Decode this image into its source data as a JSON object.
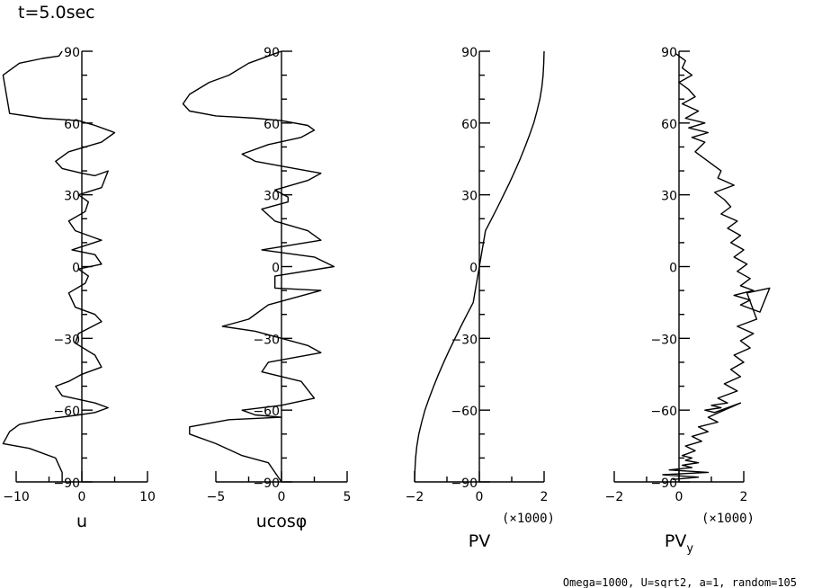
{
  "title": "t=5.0sec",
  "footer": "Omega=1000, U=sqrt2, a=1, random=105",
  "chart_data": [
    {
      "type": "line",
      "xlabel": "u",
      "xlabel_sub": "",
      "xlim": [
        -10,
        10
      ],
      "ylim": [
        -90,
        90
      ],
      "xticks": [
        -10,
        0,
        10
      ],
      "yticks": [
        -90,
        -60,
        -30,
        0,
        30,
        60,
        90
      ],
      "xtick_labels": [
        "−10",
        "0",
        "10"
      ],
      "ytick_labels": [
        "−90",
        "−60",
        "−30",
        "0",
        "30",
        "60",
        "90"
      ],
      "xscale_note": "",
      "series": [
        {
          "x": [
            -3,
            -3.5,
            -6,
            -9.5,
            -12,
            -11,
            -6,
            -0.5,
            2,
            4,
            5,
            3,
            -2,
            -4,
            -3,
            0,
            2,
            4,
            3,
            -0.5,
            1,
            0.5,
            -2,
            -1,
            2,
            3,
            -1.5,
            2,
            3,
            -0.5,
            1,
            0.5,
            -2,
            -1,
            2,
            3,
            -0.5,
            -1,
            2,
            3,
            0,
            -2,
            -4,
            -3,
            2,
            4,
            2,
            -0.5,
            -6,
            -9.5,
            -11,
            -12,
            -8,
            -4,
            -3,
            -3
          ],
          "y": [
            90,
            88,
            87,
            85,
            80,
            64,
            62,
            61,
            59,
            57,
            56,
            52,
            48,
            44,
            41,
            39,
            38,
            40,
            33,
            30,
            27,
            23,
            19,
            15,
            12,
            11,
            7,
            5,
            1,
            -1,
            -4,
            -7,
            -11,
            -17,
            -20,
            -23,
            -28,
            -32,
            -37,
            -42,
            -45,
            -48,
            -50,
            -54,
            -57,
            -59,
            -61,
            -62,
            -64,
            -66,
            -69,
            -74,
            -76,
            -80,
            -86,
            -90
          ]
        }
      ]
    },
    {
      "type": "line",
      "xlabel": "ucosφ",
      "xlabel_sub": "",
      "xlim": [
        -5,
        5
      ],
      "ylim": [
        -90,
        90
      ],
      "xticks": [
        -5,
        0,
        5
      ],
      "yticks": [
        -90,
        -60,
        -30,
        0,
        30,
        60,
        90
      ],
      "xtick_labels": [
        "−5",
        "0",
        "5"
      ],
      "ytick_labels": [
        "−90",
        "−60",
        "−30",
        "0",
        "30",
        "60",
        "90"
      ],
      "xscale_note": "",
      "series": [
        {
          "x": [
            0,
            -1,
            -2.5,
            -4,
            -5.5,
            -7,
            -7.5,
            -7,
            -5,
            -2,
            0,
            2,
            2.5,
            1.5,
            -1,
            -3,
            -2,
            1,
            3,
            2,
            -0.5,
            0.5,
            0.5,
            -1.5,
            -0.5,
            2,
            3,
            -1.5,
            2.5,
            4,
            -0.5,
            -0.5,
            3,
            -1,
            -2.5,
            -4.5,
            -2,
            0,
            2,
            3,
            -1,
            -1.5,
            1.5,
            2.5,
            0,
            -3,
            -2,
            0,
            -4,
            -7,
            -7,
            -5,
            -3,
            -1,
            -0.5,
            0
          ],
          "y": [
            90,
            88,
            85,
            80,
            77,
            72,
            68,
            65,
            63,
            62,
            61,
            59,
            57,
            54,
            51,
            47,
            44,
            41,
            39,
            36,
            32,
            29,
            27,
            24,
            19,
            15,
            11,
            7,
            4,
            0,
            -4,
            -9,
            -10,
            -16,
            -22,
            -25,
            -27,
            -30,
            -33,
            -36,
            -40,
            -44,
            -48,
            -55,
            -58,
            -60,
            -62,
            -63,
            -64,
            -67,
            -70,
            -74,
            -79,
            -82,
            -86,
            -90
          ]
        }
      ]
    },
    {
      "type": "line",
      "xlabel": "PV",
      "xlabel_sub": "",
      "xlim": [
        -2,
        2
      ],
      "ylim": [
        -90,
        90
      ],
      "xticks": [
        -2,
        0,
        2
      ],
      "yticks": [
        -90,
        -60,
        -30,
        0,
        30,
        60,
        90
      ],
      "xtick_labels": [
        "−2",
        "0",
        "2"
      ],
      "ytick_labels": [
        "−90",
        "−60",
        "−30",
        "0",
        "30",
        "60",
        "90"
      ],
      "xscale_note": "(×1000)",
      "series": [
        {
          "x": [
            2.0,
            1.99,
            1.97,
            1.93,
            1.87,
            1.78,
            1.68,
            1.55,
            1.41,
            1.26,
            1.1,
            0.93,
            0.75,
            0.57,
            0.38,
            0.19,
            0.0,
            -0.19,
            -0.38,
            -0.57,
            -0.75,
            -0.93,
            -1.1,
            -1.26,
            -1.41,
            -1.55,
            -1.68,
            -1.78,
            -1.87,
            -1.93,
            -1.97,
            -1.99,
            -2.0
          ],
          "y": [
            90,
            85,
            80,
            75,
            70,
            65,
            60,
            55,
            50,
            45,
            40,
            35,
            30,
            25,
            20,
            15,
            0,
            -15,
            -20,
            -25,
            -30,
            -35,
            -40,
            -45,
            -50,
            -55,
            -60,
            -65,
            -70,
            -75,
            -80,
            -85,
            -90
          ]
        }
      ]
    },
    {
      "type": "line",
      "xlabel": "PV",
      "xlabel_sub": "y",
      "xlim": [
        -2,
        2
      ],
      "ylim": [
        -90,
        90
      ],
      "xticks": [
        -2,
        0,
        2
      ],
      "yticks": [
        -90,
        -60,
        -30,
        0,
        30,
        60,
        90
      ],
      "xtick_labels": [
        "−2",
        "0",
        "2"
      ],
      "ytick_labels": [
        "−90",
        "−60",
        "−30",
        "0",
        "30",
        "60",
        "90"
      ],
      "xscale_note": "(×1000)",
      "series": [
        {
          "x": [
            -0.1,
            0.2,
            0.1,
            0.4,
            0.0,
            0.3,
            0.5,
            0.1,
            0.6,
            0.2,
            0.8,
            0.3,
            0.9,
            0.4,
            0.8,
            0.5,
            0.9,
            1.3,
            1.2,
            1.7,
            1.1,
            1.4,
            1.6,
            1.3,
            1.8,
            1.5,
            1.9,
            1.6,
            2.0,
            1.7,
            2.1,
            1.8,
            2.2,
            1.9,
            2.3,
            1.7,
            2.2,
            1.9,
            2.5,
            2.8,
            2.1,
            2.4,
            1.8,
            2.3,
            1.9,
            2.2,
            1.7,
            2.0,
            1.6,
            1.9,
            1.4,
            1.8,
            1.2,
            1.5,
            1.0,
            1.3,
            0.8,
            1.1,
            1.9,
            0.9,
            1.2,
            0.6,
            0.9,
            0.4,
            0.7,
            0.2,
            0.5,
            0.1,
            0.4,
            0.2,
            0.6,
            0.1,
            0.4,
            -0.3,
            0.9,
            -0.5,
            0.6,
            -0.2
          ],
          "y": [
            89,
            86,
            83,
            80,
            77,
            74,
            71,
            68,
            65,
            62,
            60,
            58,
            56,
            54,
            52,
            48,
            44,
            40,
            37,
            34,
            31,
            28,
            25,
            22,
            19,
            16,
            13,
            10,
            7,
            4,
            1,
            -2,
            -5,
            -8,
            -10,
            -12,
            -14,
            -16,
            -19,
            -9,
            -11,
            -22,
            -25,
            -28,
            -31,
            -34,
            -37,
            -40,
            -43,
            -46,
            -49,
            -52,
            -55,
            -57,
            -58,
            -59,
            -60,
            -61,
            -57,
            -63,
            -65,
            -67,
            -69,
            -71,
            -73,
            -75,
            -77,
            -79,
            -80,
            -81,
            -82,
            -83,
            -84,
            -85,
            -86,
            -87,
            -88,
            -89
          ]
        }
      ]
    }
  ]
}
